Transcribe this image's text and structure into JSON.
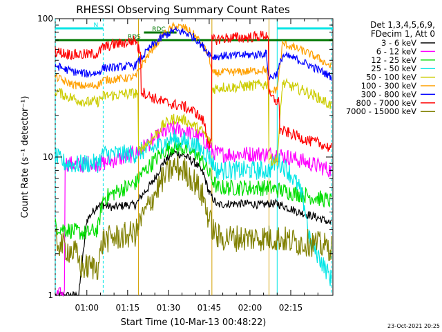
{
  "chart_data": {
    "type": "line",
    "title": "RHESSI Observing Summary Count Rates",
    "xlabel": "Start Time (10-Mar-13 00:48:22)",
    "ylabel": "Count Rate (s⁻¹ detector⁻¹)",
    "y_scale": "log",
    "ylim": [
      1,
      100
    ],
    "y_ticks": [
      {
        "value": 1,
        "label": "1"
      },
      {
        "value": 10,
        "label": "10"
      },
      {
        "value": 100,
        "label": "100"
      }
    ],
    "x_ticks": [
      {
        "label": "01:00",
        "minute": 60
      },
      {
        "label": "01:15",
        "minute": 75
      },
      {
        "label": "01:30",
        "minute": 90
      },
      {
        "label": "01:45",
        "minute": 105
      },
      {
        "label": "02:00",
        "minute": 120
      },
      {
        "label": "02:15",
        "minute": 135
      }
    ],
    "x_range_minutes": [
      48.37,
      150.5
    ],
    "footer_date": "23-Oct-2021 20:25",
    "legend_header": [
      "Det 1,3,4,5,6,9,",
      "FDecim 1, Att 0"
    ],
    "flags": [
      {
        "label": "N",
        "color": "#00e5e5",
        "segments": [
          [
            48.4,
            66.0
          ],
          [
            130.0,
            150.5
          ]
        ]
      },
      {
        "label": "RDS",
        "color": "#007700",
        "segments": [
          [
            48.4,
            150.5
          ]
        ]
      },
      {
        "label": "RDC",
        "color": "#007700",
        "segments": [
          [
            81.0,
            93.0
          ]
        ]
      }
    ],
    "vlines": [
      {
        "minute": 48.4,
        "color": "#00e5e5",
        "style": "dash"
      },
      {
        "minute": 66.0,
        "color": "#00e5e5",
        "style": "dash"
      },
      {
        "minute": 79.0,
        "color": "#d4a000",
        "style": "solid"
      },
      {
        "minute": 106.0,
        "color": "#d4a000",
        "style": "solid"
      },
      {
        "minute": 127.0,
        "color": "#d4a000",
        "style": "solid"
      },
      {
        "minute": 130.0,
        "color": "#00e5e5",
        "style": "solid"
      },
      {
        "minute": 150.0,
        "color": "#00e5e5",
        "style": "dash"
      }
    ],
    "series": [
      {
        "name": "3 - 6 keV",
        "color": "#000000",
        "points": [
          [
            48.4,
            1.0
          ],
          [
            57,
            1.0
          ],
          [
            60,
            3.5
          ],
          [
            64,
            4.5
          ],
          [
            66,
            4.5
          ],
          [
            70,
            4.3
          ],
          [
            74,
            4.5
          ],
          [
            78,
            4.5
          ],
          [
            80,
            5.2
          ],
          [
            84,
            6.5
          ],
          [
            88,
            9.0
          ],
          [
            92,
            10.8
          ],
          [
            96,
            10.2
          ],
          [
            100,
            9.0
          ],
          [
            103,
            7.5
          ],
          [
            105,
            5.5
          ],
          [
            108,
            4.5
          ],
          [
            112,
            4.6
          ],
          [
            116,
            4.6
          ],
          [
            120,
            4.6
          ],
          [
            124,
            4.5
          ],
          [
            127,
            4.6
          ],
          [
            130,
            4.6
          ],
          [
            134,
            4.3
          ],
          [
            138,
            4.0
          ],
          [
            142,
            3.8
          ],
          [
            146,
            3.6
          ],
          [
            150,
            3.3
          ]
        ]
      },
      {
        "name": "6 - 12 keV",
        "color": "#ff00ff",
        "points": [
          [
            48.4,
            1.0
          ],
          [
            51,
            1.0
          ],
          [
            52,
            9.0
          ],
          [
            56,
            8.8
          ],
          [
            58,
            8.7
          ],
          [
            60,
            9.0
          ],
          [
            64,
            9.0
          ],
          [
            66,
            9.0
          ],
          [
            70,
            9.5
          ],
          [
            74,
            10.0
          ],
          [
            78,
            10.5
          ],
          [
            80,
            11.5
          ],
          [
            84,
            13.0
          ],
          [
            88,
            15.0
          ],
          [
            92,
            16.0
          ],
          [
            96,
            15.5
          ],
          [
            100,
            14.5
          ],
          [
            103,
            13.5
          ],
          [
            105,
            11.5
          ],
          [
            108,
            10.5
          ],
          [
            112,
            10.5
          ],
          [
            116,
            10.5
          ],
          [
            120,
            10.5
          ],
          [
            124,
            10.5
          ],
          [
            127,
            10.5
          ],
          [
            130,
            10.5
          ],
          [
            134,
            10.0
          ],
          [
            138,
            9.5
          ],
          [
            142,
            9.0
          ],
          [
            146,
            8.5
          ],
          [
            150,
            8.0
          ]
        ]
      },
      {
        "name": "12 - 25 keV",
        "color": "#00dd00",
        "points": [
          [
            48.4,
            3.2
          ],
          [
            52,
            3.0
          ],
          [
            56,
            2.9
          ],
          [
            60,
            2.8
          ],
          [
            64,
            3.0
          ],
          [
            66,
            5.0
          ],
          [
            70,
            5.5
          ],
          [
            74,
            6.0
          ],
          [
            78,
            6.5
          ],
          [
            80,
            7.5
          ],
          [
            84,
            9.0
          ],
          [
            88,
            11.0
          ],
          [
            92,
            12.0
          ],
          [
            96,
            11.5
          ],
          [
            100,
            10.5
          ],
          [
            103,
            9.0
          ],
          [
            105,
            7.5
          ],
          [
            108,
            6.0
          ],
          [
            112,
            6.0
          ],
          [
            116,
            6.0
          ],
          [
            120,
            6.0
          ],
          [
            124,
            6.0
          ],
          [
            127,
            6.0
          ],
          [
            130,
            5.8
          ],
          [
            134,
            5.6
          ],
          [
            138,
            5.4
          ],
          [
            142,
            5.2
          ],
          [
            146,
            5.0
          ],
          [
            150,
            4.8
          ]
        ]
      },
      {
        "name": "25 - 50 keV",
        "color": "#00e5e5",
        "points": [
          [
            48.4,
            10.0
          ],
          [
            52,
            9.0
          ],
          [
            56,
            8.8
          ],
          [
            60,
            9.0
          ],
          [
            64,
            9.0
          ],
          [
            66,
            10.5
          ],
          [
            70,
            10.5
          ],
          [
            74,
            10.5
          ],
          [
            78,
            10.5
          ],
          [
            80,
            11.0
          ],
          [
            84,
            11.5
          ],
          [
            88,
            12.5
          ],
          [
            92,
            13.5
          ],
          [
            96,
            13.0
          ],
          [
            100,
            12.0
          ],
          [
            103,
            11.0
          ],
          [
            105,
            10.0
          ],
          [
            108,
            8.0
          ],
          [
            112,
            8.0
          ],
          [
            116,
            8.0
          ],
          [
            120,
            8.0
          ],
          [
            124,
            8.0
          ],
          [
            127,
            8.0
          ],
          [
            130,
            9.5
          ],
          [
            134,
            8.0
          ],
          [
            138,
            6.0
          ],
          [
            140,
            4.5
          ],
          [
            142,
            2.5
          ],
          [
            146,
            1.8
          ],
          [
            150,
            1.3
          ]
        ]
      },
      {
        "name": "50 - 100 keV",
        "color": "#cccc00",
        "points": [
          [
            48.4,
            30.0
          ],
          [
            52,
            28.0
          ],
          [
            56,
            26.0
          ],
          [
            60,
            25.0
          ],
          [
            64,
            25.0
          ],
          [
            66,
            27.5
          ],
          [
            70,
            28.0
          ],
          [
            74,
            28.5
          ],
          [
            78,
            29.0
          ],
          [
            79,
            10.8
          ],
          [
            80,
            11.5
          ],
          [
            84,
            13.5
          ],
          [
            88,
            17.0
          ],
          [
            92,
            19.0
          ],
          [
            96,
            18.5
          ],
          [
            100,
            16.5
          ],
          [
            103,
            15.0
          ],
          [
            105,
            13.0
          ],
          [
            106,
            31.0
          ],
          [
            110,
            32.0
          ],
          [
            114,
            32.0
          ],
          [
            118,
            32.5
          ],
          [
            122,
            33.0
          ],
          [
            126,
            33.5
          ],
          [
            127,
            10.0
          ],
          [
            128,
            9.5
          ],
          [
            130,
            9.5
          ],
          [
            132,
            34.0
          ],
          [
            136,
            32.0
          ],
          [
            140,
            30.0
          ],
          [
            145,
            27.0
          ],
          [
            150,
            23.5
          ]
        ]
      },
      {
        "name": "100 - 300 keV",
        "color": "#ffa000",
        "points": [
          [
            48.4,
            38.0
          ],
          [
            52,
            35.0
          ],
          [
            56,
            33.0
          ],
          [
            60,
            32.5
          ],
          [
            64,
            33.0
          ],
          [
            66,
            36.0
          ],
          [
            70,
            36.5
          ],
          [
            74,
            37.0
          ],
          [
            78,
            38.0
          ],
          [
            80,
            46.0
          ],
          [
            84,
            60.0
          ],
          [
            88,
            76.0
          ],
          [
            92,
            88.0
          ],
          [
            96,
            86.0
          ],
          [
            100,
            75.0
          ],
          [
            103,
            62.0
          ],
          [
            105,
            54.0
          ],
          [
            106,
            40.0
          ],
          [
            110,
            41.0
          ],
          [
            114,
            41.0
          ],
          [
            118,
            41.5
          ],
          [
            122,
            42.0
          ],
          [
            126,
            43.0
          ],
          [
            127,
            29.0
          ],
          [
            130,
            31.0
          ],
          [
            132,
            66.0
          ],
          [
            136,
            62.0
          ],
          [
            140,
            58.0
          ],
          [
            145,
            52.0
          ],
          [
            150,
            45.0
          ]
        ]
      },
      {
        "name": "300 - 800 keV",
        "color": "#0000ff",
        "points": [
          [
            48.4,
            46.0
          ],
          [
            52,
            43.0
          ],
          [
            56,
            41.0
          ],
          [
            60,
            40.0
          ],
          [
            64,
            40.5
          ],
          [
            66,
            44.0
          ],
          [
            70,
            44.5
          ],
          [
            74,
            45.0
          ],
          [
            78,
            46.0
          ],
          [
            80,
            52.0
          ],
          [
            84,
            64.0
          ],
          [
            88,
            74.0
          ],
          [
            92,
            82.0
          ],
          [
            96,
            80.0
          ],
          [
            100,
            72.0
          ],
          [
            103,
            62.0
          ],
          [
            105,
            56.0
          ],
          [
            106,
            53.0
          ],
          [
            110,
            54.0
          ],
          [
            114,
            54.0
          ],
          [
            118,
            54.5
          ],
          [
            122,
            55.0
          ],
          [
            126,
            56.0
          ],
          [
            127,
            37.0
          ],
          [
            130,
            40.0
          ],
          [
            132,
            54.0
          ],
          [
            136,
            52.0
          ],
          [
            140,
            48.0
          ],
          [
            145,
            43.0
          ],
          [
            150,
            38.0
          ]
        ]
      },
      {
        "name": "800 - 7000 keV",
        "color": "#ff0000",
        "points": [
          [
            48.4,
            58.0
          ],
          [
            52,
            56.0
          ],
          [
            56,
            55.0
          ],
          [
            60,
            55.0
          ],
          [
            64,
            56.0
          ],
          [
            66,
            62.0
          ],
          [
            70,
            65.0
          ],
          [
            74,
            67.0
          ],
          [
            78,
            70.0
          ],
          [
            79,
            60.0
          ],
          [
            80,
            30.0
          ],
          [
            84,
            27.0
          ],
          [
            88,
            25.0
          ],
          [
            92,
            24.0
          ],
          [
            96,
            23.0
          ],
          [
            100,
            21.0
          ],
          [
            103,
            18.0
          ],
          [
            105,
            12.5
          ],
          [
            106,
            70.0
          ],
          [
            110,
            72.0
          ],
          [
            114,
            73.0
          ],
          [
            118,
            73.0
          ],
          [
            122,
            74.0
          ],
          [
            126,
            76.0
          ],
          [
            127,
            28.0
          ],
          [
            130,
            25.0
          ],
          [
            131,
            15.5
          ],
          [
            134,
            15.0
          ],
          [
            138,
            14.0
          ],
          [
            142,
            13.0
          ],
          [
            146,
            12.5
          ],
          [
            150,
            11.5
          ]
        ]
      },
      {
        "name": "7000 - 15000 keV",
        "color": "#808000",
        "points": [
          [
            48.4,
            2.5
          ],
          [
            52,
            2.2
          ],
          [
            56,
            2.0
          ],
          [
            58,
            1.6
          ],
          [
            60,
            1.6
          ],
          [
            64,
            1.6
          ],
          [
            66,
            2.5
          ],
          [
            70,
            2.6
          ],
          [
            74,
            2.7
          ],
          [
            78,
            2.8
          ],
          [
            80,
            3.5
          ],
          [
            84,
            5.0
          ],
          [
            88,
            7.0
          ],
          [
            92,
            8.5
          ],
          [
            96,
            8.0
          ],
          [
            100,
            6.5
          ],
          [
            103,
            5.0
          ],
          [
            105,
            3.5
          ],
          [
            108,
            2.6
          ],
          [
            112,
            2.6
          ],
          [
            116,
            2.6
          ],
          [
            120,
            2.6
          ],
          [
            124,
            2.6
          ],
          [
            127,
            2.6
          ],
          [
            130,
            2.6
          ],
          [
            134,
            2.5
          ],
          [
            138,
            2.4
          ],
          [
            142,
            2.4
          ],
          [
            146,
            2.3
          ],
          [
            150,
            2.2
          ]
        ]
      }
    ]
  }
}
